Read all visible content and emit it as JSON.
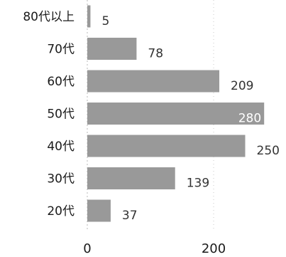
{
  "chart_data": {
    "type": "bar",
    "orientation": "horizontal",
    "categories": [
      "80代以上",
      "70代",
      "60代",
      "50代",
      "40代",
      "30代",
      "20代"
    ],
    "values": [
      5,
      78,
      209,
      280,
      250,
      139,
      37
    ],
    "xticks": [
      0,
      200
    ],
    "xlim": [
      0,
      285
    ],
    "title": "",
    "xlabel": "",
    "ylabel": "",
    "grid": "vertical dotted",
    "bar_color": "#999999",
    "value_label_inside_color": "#ffffff",
    "value_label_outside_color": "#333333"
  }
}
